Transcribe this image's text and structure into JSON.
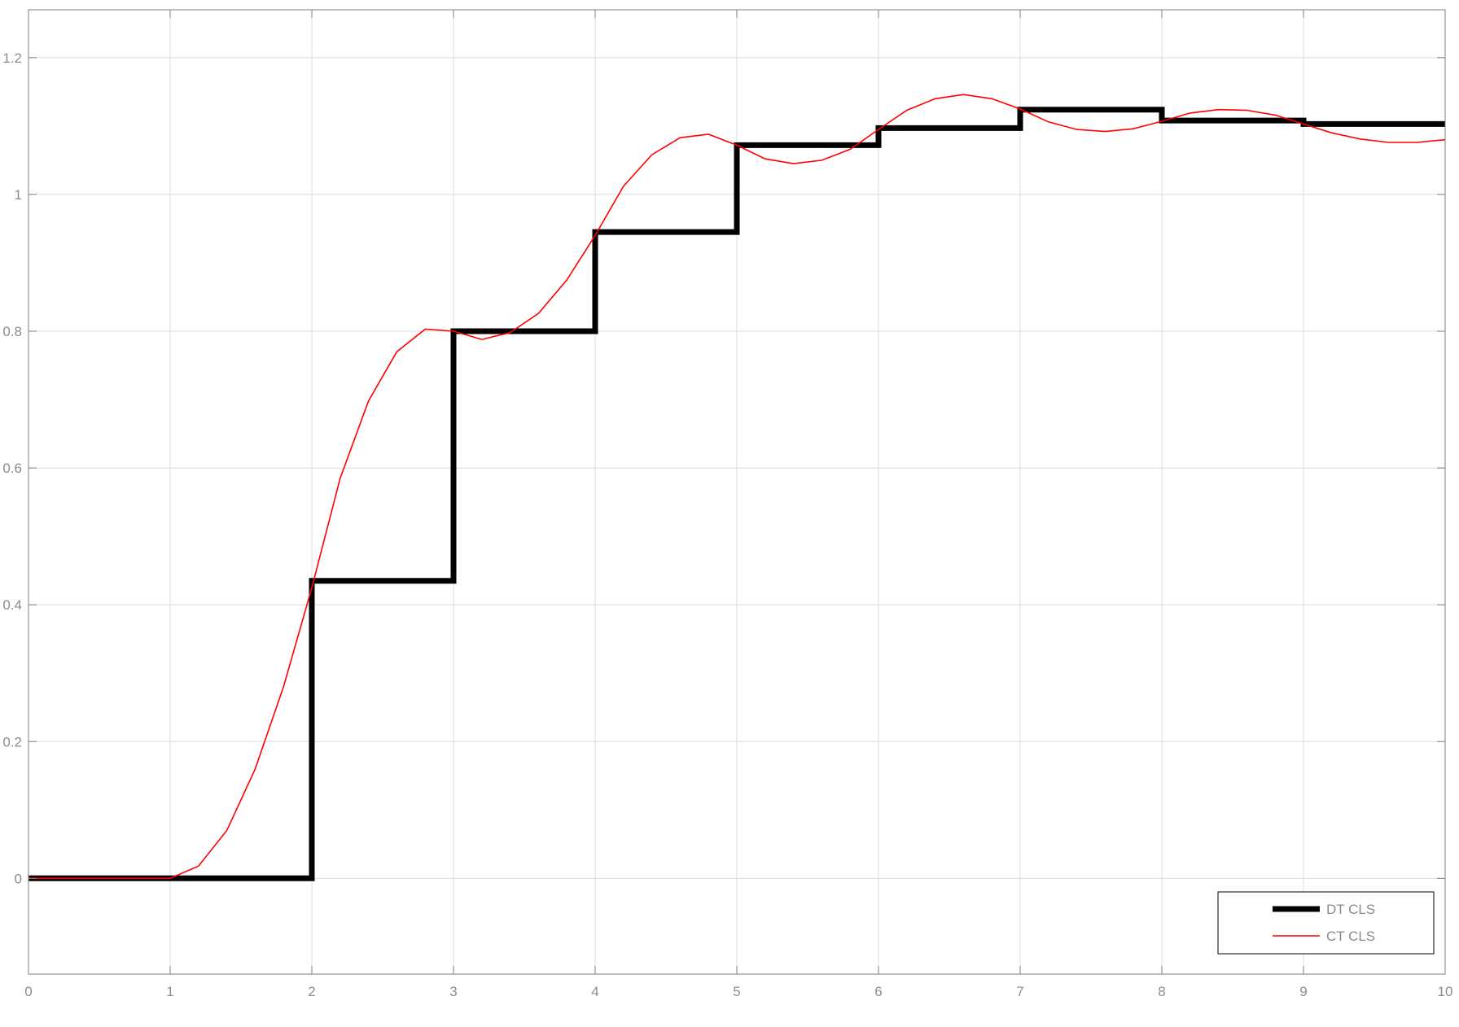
{
  "chart_data": {
    "type": "line",
    "title": "",
    "xlabel": "",
    "ylabel": "",
    "xlim": [
      0,
      10
    ],
    "ylim": [
      -0.14,
      1.27
    ],
    "x_ticks": [
      0,
      1,
      2,
      3,
      4,
      5,
      6,
      7,
      8,
      9,
      10
    ],
    "x_tick_labels": [
      "0",
      "1",
      "2",
      "3",
      "4",
      "5",
      "6",
      "7",
      "8",
      "9",
      "10"
    ],
    "y_ticks": [
      0,
      0.2,
      0.4,
      0.6,
      0.8,
      1,
      1.2
    ],
    "y_tick_labels": [
      "0",
      "0.2",
      "0.4",
      "0.6",
      "0.8",
      "1",
      "1.2"
    ],
    "grid": true,
    "legend_position": "bottom-right",
    "series": [
      {
        "name": "DT CLS",
        "style": "step",
        "color": "#000000",
        "x": [
          0,
          1,
          2,
          3,
          4,
          5,
          6,
          7,
          8,
          9,
          10
        ],
        "y": [
          0,
          0,
          0.435,
          0.8,
          0.945,
          1.072,
          1.097,
          1.124,
          1.108,
          1.103,
          1.103
        ]
      },
      {
        "name": "CT CLS",
        "style": "line",
        "color": "#ff0000",
        "x": [
          0,
          0.2,
          0.4,
          0.6,
          0.8,
          1.0,
          1.2,
          1.4,
          1.6,
          1.8,
          2.0,
          2.2,
          2.4,
          2.6,
          2.8,
          3.0,
          3.2,
          3.4,
          3.6,
          3.8,
          4.0,
          4.2,
          4.4,
          4.6,
          4.8,
          5.0,
          5.2,
          5.4,
          5.6,
          5.8,
          6.0,
          6.2,
          6.4,
          6.6,
          6.8,
          7.0,
          7.2,
          7.4,
          7.6,
          7.8,
          8.0,
          8.2,
          8.4,
          8.6,
          8.8,
          9.0,
          9.2,
          9.4,
          9.6,
          9.8,
          10.0
        ],
        "y": [
          0,
          0,
          0,
          0,
          0,
          0,
          0.018,
          0.07,
          0.16,
          0.28,
          0.425,
          0.585,
          0.698,
          0.77,
          0.803,
          0.8,
          0.788,
          0.798,
          0.826,
          0.875,
          0.94,
          1.012,
          1.058,
          1.083,
          1.088,
          1.072,
          1.052,
          1.045,
          1.05,
          1.066,
          1.095,
          1.123,
          1.14,
          1.146,
          1.14,
          1.125,
          1.106,
          1.095,
          1.092,
          1.096,
          1.107,
          1.119,
          1.124,
          1.123,
          1.116,
          1.103,
          1.09,
          1.081,
          1.076,
          1.076,
          1.08
        ]
      }
    ]
  },
  "colors": {
    "background": "#ffffff",
    "grid": "#dcdcdc",
    "axis": "#7f7f7f",
    "tick_text": "#8c8c8c"
  }
}
